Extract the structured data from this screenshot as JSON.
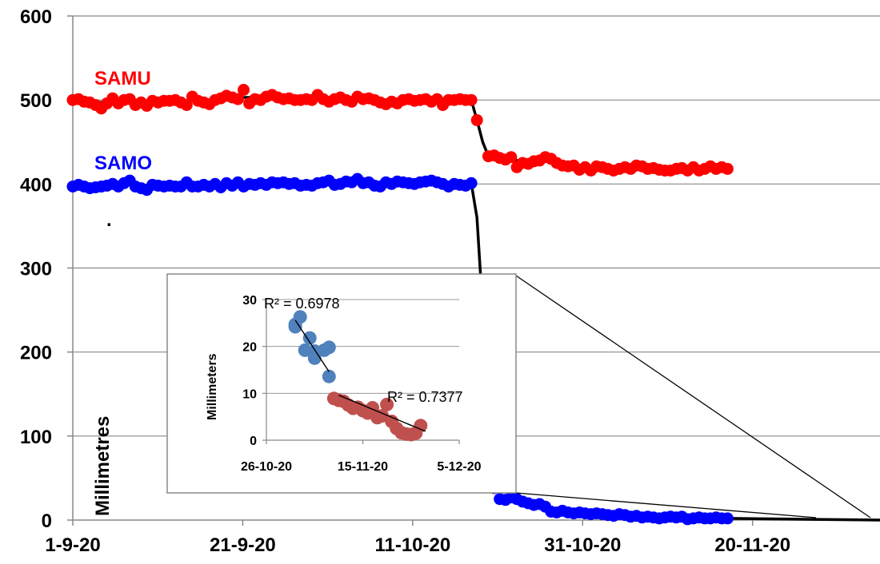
{
  "chart_data": [
    {
      "type": "scatter",
      "title": "",
      "xlabel": "",
      "ylabel": "Millimetres",
      "ylim": [
        0,
        600
      ],
      "xlim": [
        "2020-09-01",
        "2020-12-05"
      ],
      "yticks": [
        0,
        100,
        200,
        300,
        400,
        500,
        600
      ],
      "xticks": [
        {
          "date": "2020-09-01",
          "label": "1-9-20"
        },
        {
          "date": "2020-09-21",
          "label": "21-9-20"
        },
        {
          "date": "2020-10-11",
          "label": "11-10-20"
        },
        {
          "date": "2020-10-31",
          "label": "31-10-20"
        },
        {
          "date": "2020-11-20",
          "label": "20-11-20"
        }
      ],
      "grid": "horizontal",
      "annotation_dot": ".",
      "series": [
        {
          "name": "SAMU",
          "color": "#ff0000",
          "start": "2020-09-01",
          "step_days": 0.67,
          "values": [
            500,
            501,
            498,
            497,
            494,
            490,
            496,
            502,
            496,
            500,
            501,
            494,
            497,
            493,
            499,
            497,
            499,
            499,
            500,
            497,
            494,
            504,
            499,
            497,
            495,
            500,
            502,
            505,
            503,
            501,
            512,
            496,
            501,
            500,
            504,
            506,
            503,
            501,
            502,
            500,
            500,
            501,
            500,
            506,
            501,
            498,
            501,
            503,
            500,
            498,
            504,
            501,
            502,
            500,
            497,
            495,
            498,
            496,
            500,
            501,
            499,
            500,
            501,
            498,
            501,
            494,
            500,
            500,
            501,
            500,
            500,
            476,
            450,
            433,
            434,
            431,
            429,
            432,
            420,
            425,
            424,
            427,
            428,
            432,
            430,
            425,
            422,
            421,
            422,
            417,
            420,
            416,
            421,
            420,
            418,
            416,
            418,
            420,
            418,
            422,
            421,
            418,
            419,
            417,
            416,
            416,
            418,
            419,
            416,
            420,
            416,
            418,
            421,
            418,
            420,
            418
          ]
        },
        {
          "name": "SAMO",
          "color": "#0000ff",
          "start": "2020-09-01",
          "step_days": 0.67,
          "values": [
            397,
            399,
            397,
            395,
            396,
            397,
            398,
            400,
            397,
            401,
            404,
            397,
            395,
            393,
            399,
            398,
            397,
            398,
            397,
            397,
            402,
            397,
            397,
            399,
            397,
            400,
            396,
            401,
            398,
            402,
            397,
            400,
            399,
            401,
            399,
            402,
            401,
            402,
            400,
            401,
            398,
            399,
            398,
            401,
            402,
            404,
            399,
            400,
            403,
            402,
            406,
            401,
            402,
            398,
            397,
            402,
            400,
            403,
            402,
            401,
            400,
            402,
            403,
            404,
            402,
            400,
            397,
            400,
            399,
            398,
            401,
            360,
            250,
            120,
            38,
            25,
            24,
            27,
            25,
            22,
            20,
            18,
            19,
            16,
            10,
            9,
            11,
            9,
            8,
            9,
            8,
            7,
            8,
            7,
            6,
            5,
            7,
            6,
            4,
            5,
            3,
            4,
            3,
            2,
            3,
            4,
            3,
            4,
            1,
            2,
            3,
            2,
            2,
            3,
            2,
            2
          ]
        }
      ],
      "trend": {
        "color": "#000000",
        "values": [
          500,
          500,
          499,
          498,
          498,
          497,
          497,
          499,
          500,
          500,
          500,
          500,
          499,
          499,
          499,
          499,
          499,
          499,
          499,
          499,
          499,
          500,
          500,
          500,
          500,
          501,
          502,
          503,
          503,
          503,
          503,
          503,
          502,
          502,
          502,
          502,
          502,
          502,
          501,
          501,
          501,
          501,
          501,
          502,
          501,
          500,
          500,
          500,
          500,
          500,
          500,
          500,
          501,
          500,
          500,
          500,
          500,
          500,
          500,
          500,
          500,
          500,
          500,
          500,
          500,
          500,
          500,
          500,
          500,
          500,
          500,
          476,
          450,
          433,
          432,
          431,
          430,
          429,
          428,
          427,
          426,
          426,
          426,
          427,
          426,
          425,
          424,
          423,
          422,
          421,
          421,
          421,
          420,
          420,
          420,
          419,
          419,
          419,
          419,
          420,
          420,
          419,
          419,
          418,
          418,
          418,
          418,
          418,
          418,
          418,
          418,
          418,
          418,
          418,
          418,
          418
        ]
      }
    },
    {
      "type": "scatter",
      "title": "",
      "xlabel": "",
      "ylabel": "Millimeters",
      "ylim": [
        0,
        30
      ],
      "yticks": [
        0,
        10,
        20,
        30
      ],
      "xlim": [
        "2020-10-26",
        "2020-12-05"
      ],
      "xticks": [
        {
          "date": "2020-10-26",
          "label": "26-10-20"
        },
        {
          "date": "2020-11-15",
          "label": "15-11-20"
        },
        {
          "date": "2020-12-05",
          "label": "5-12-20"
        }
      ],
      "series": [
        {
          "color": "#4f81bd",
          "points": [
            {
              "x": "2020-11-01",
              "y": 24.7
            },
            {
              "x": "2020-11-01",
              "y": 24.2
            },
            {
              "x": "2020-11-02",
              "y": 26.3
            },
            {
              "x": "2020-11-03",
              "y": 19.2
            },
            {
              "x": "2020-11-04",
              "y": 21.8
            },
            {
              "x": "2020-11-05",
              "y": 19.0
            },
            {
              "x": "2020-11-05",
              "y": 17.5
            },
            {
              "x": "2020-11-07",
              "y": 19.2
            },
            {
              "x": "2020-11-08",
              "y": 19.8
            },
            {
              "x": "2020-11-08",
              "y": 13.6
            }
          ],
          "trendline": [
            {
              "x": "2020-11-01",
              "y": 25.6
            },
            {
              "x": "2020-11-08",
              "y": 14.6
            }
          ],
          "r2_label": "R² = 0.6978"
        },
        {
          "color": "#c0504d",
          "points": [
            {
              "x": "2020-11-09",
              "y": 8.9
            },
            {
              "x": "2020-11-10",
              "y": 8.5
            },
            {
              "x": "2020-11-11",
              "y": 8.3
            },
            {
              "x": "2020-11-12",
              "y": 7.5
            },
            {
              "x": "2020-11-13",
              "y": 6.8
            },
            {
              "x": "2020-11-14",
              "y": 7.0
            },
            {
              "x": "2020-11-15",
              "y": 6.3
            },
            {
              "x": "2020-11-16",
              "y": 5.8
            },
            {
              "x": "2020-11-17",
              "y": 6.9
            },
            {
              "x": "2020-11-18",
              "y": 4.8
            },
            {
              "x": "2020-11-19",
              "y": 5.2
            },
            {
              "x": "2020-11-20",
              "y": 7.6
            },
            {
              "x": "2020-11-21",
              "y": 4.0
            },
            {
              "x": "2020-11-22",
              "y": 2.5
            },
            {
              "x": "2020-11-23",
              "y": 1.6
            },
            {
              "x": "2020-11-24",
              "y": 1.3
            },
            {
              "x": "2020-11-25",
              "y": 1.2
            },
            {
              "x": "2020-11-26",
              "y": 1.5
            },
            {
              "x": "2020-11-27",
              "y": 3.1
            }
          ],
          "trendline": [
            {
              "x": "2020-11-10",
              "y": 9.6
            },
            {
              "x": "2020-11-28",
              "y": 1.9
            }
          ],
          "r2_label": "R² = 0.7377"
        }
      ]
    }
  ]
}
